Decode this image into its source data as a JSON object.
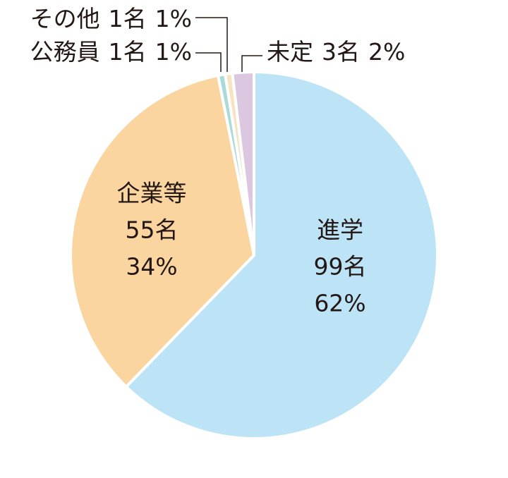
{
  "chart_data": {
    "type": "pie",
    "categories": [
      "進学",
      "企業等",
      "公務員",
      "その他",
      "未定"
    ],
    "values": [
      99,
      55,
      1,
      1,
      3
    ],
    "value_labels": [
      "99名",
      "55名",
      "1名",
      "1名",
      "3名"
    ],
    "percent_labels": [
      "62%",
      "34%",
      "1%",
      "1%",
      "2%"
    ],
    "colors": [
      "#bde3f6",
      "#fbd5a0",
      "#a9dad8",
      "#f7e3c2",
      "#dcc7e1"
    ]
  }
}
